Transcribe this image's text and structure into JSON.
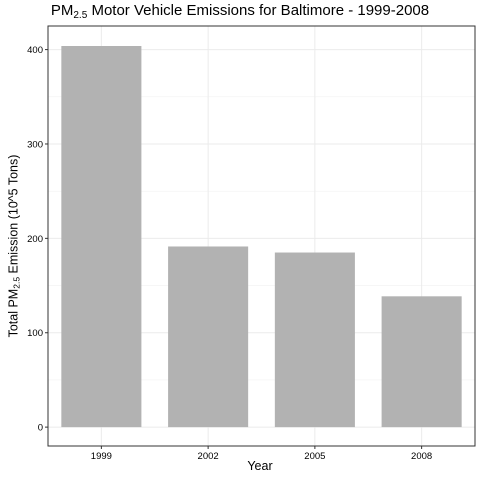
{
  "chart_data": {
    "type": "bar",
    "title": {
      "prefix": "PM",
      "subscript": "2.5",
      "rest": " Motor Vehicle Emissions for Baltimore - 1999-2008"
    },
    "xlabel": "Year",
    "ylabel": {
      "prefix": "Total PM",
      "subscript": "2.5",
      "rest": " Emission (10^5 Tons)"
    },
    "categories": [
      "1999",
      "2002",
      "2005",
      "2008"
    ],
    "values": [
      403.8,
      191.4,
      185.0,
      138.6
    ],
    "ylim": [
      -20,
      425
    ],
    "yticks": [
      0,
      100,
      200,
      300,
      400
    ],
    "grid": true,
    "bar_color": "#b2b2b2",
    "legend": "none"
  }
}
